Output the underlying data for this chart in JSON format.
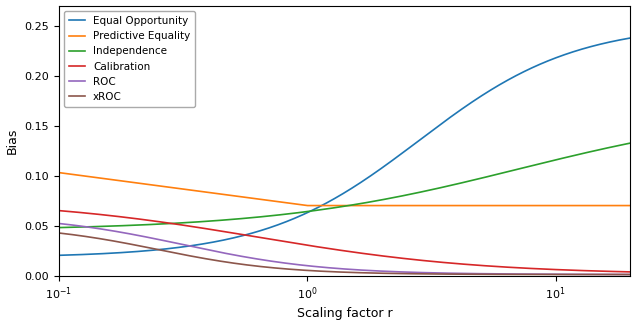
{
  "xlabel": "Scaling factor r",
  "ylabel": "Bias",
  "xlim": [
    0.1,
    20
  ],
  "ylim": [
    0.0,
    0.27
  ],
  "yticks": [
    0.0,
    0.05,
    0.1,
    0.15,
    0.2,
    0.25
  ],
  "xticks": [
    0.1,
    1.0,
    10.0
  ],
  "xtick_labels": [
    "$10^{-1}$",
    "$10^{0}$",
    "$10^{1}$"
  ],
  "colors": {
    "Equal Opportunity": "#1f77b4",
    "Predictive Equality": "#ff7f0e",
    "Independence": "#2ca02c",
    "Calibration": "#d62728",
    "ROC": "#9467bd",
    "xROC": "#8c564b"
  }
}
